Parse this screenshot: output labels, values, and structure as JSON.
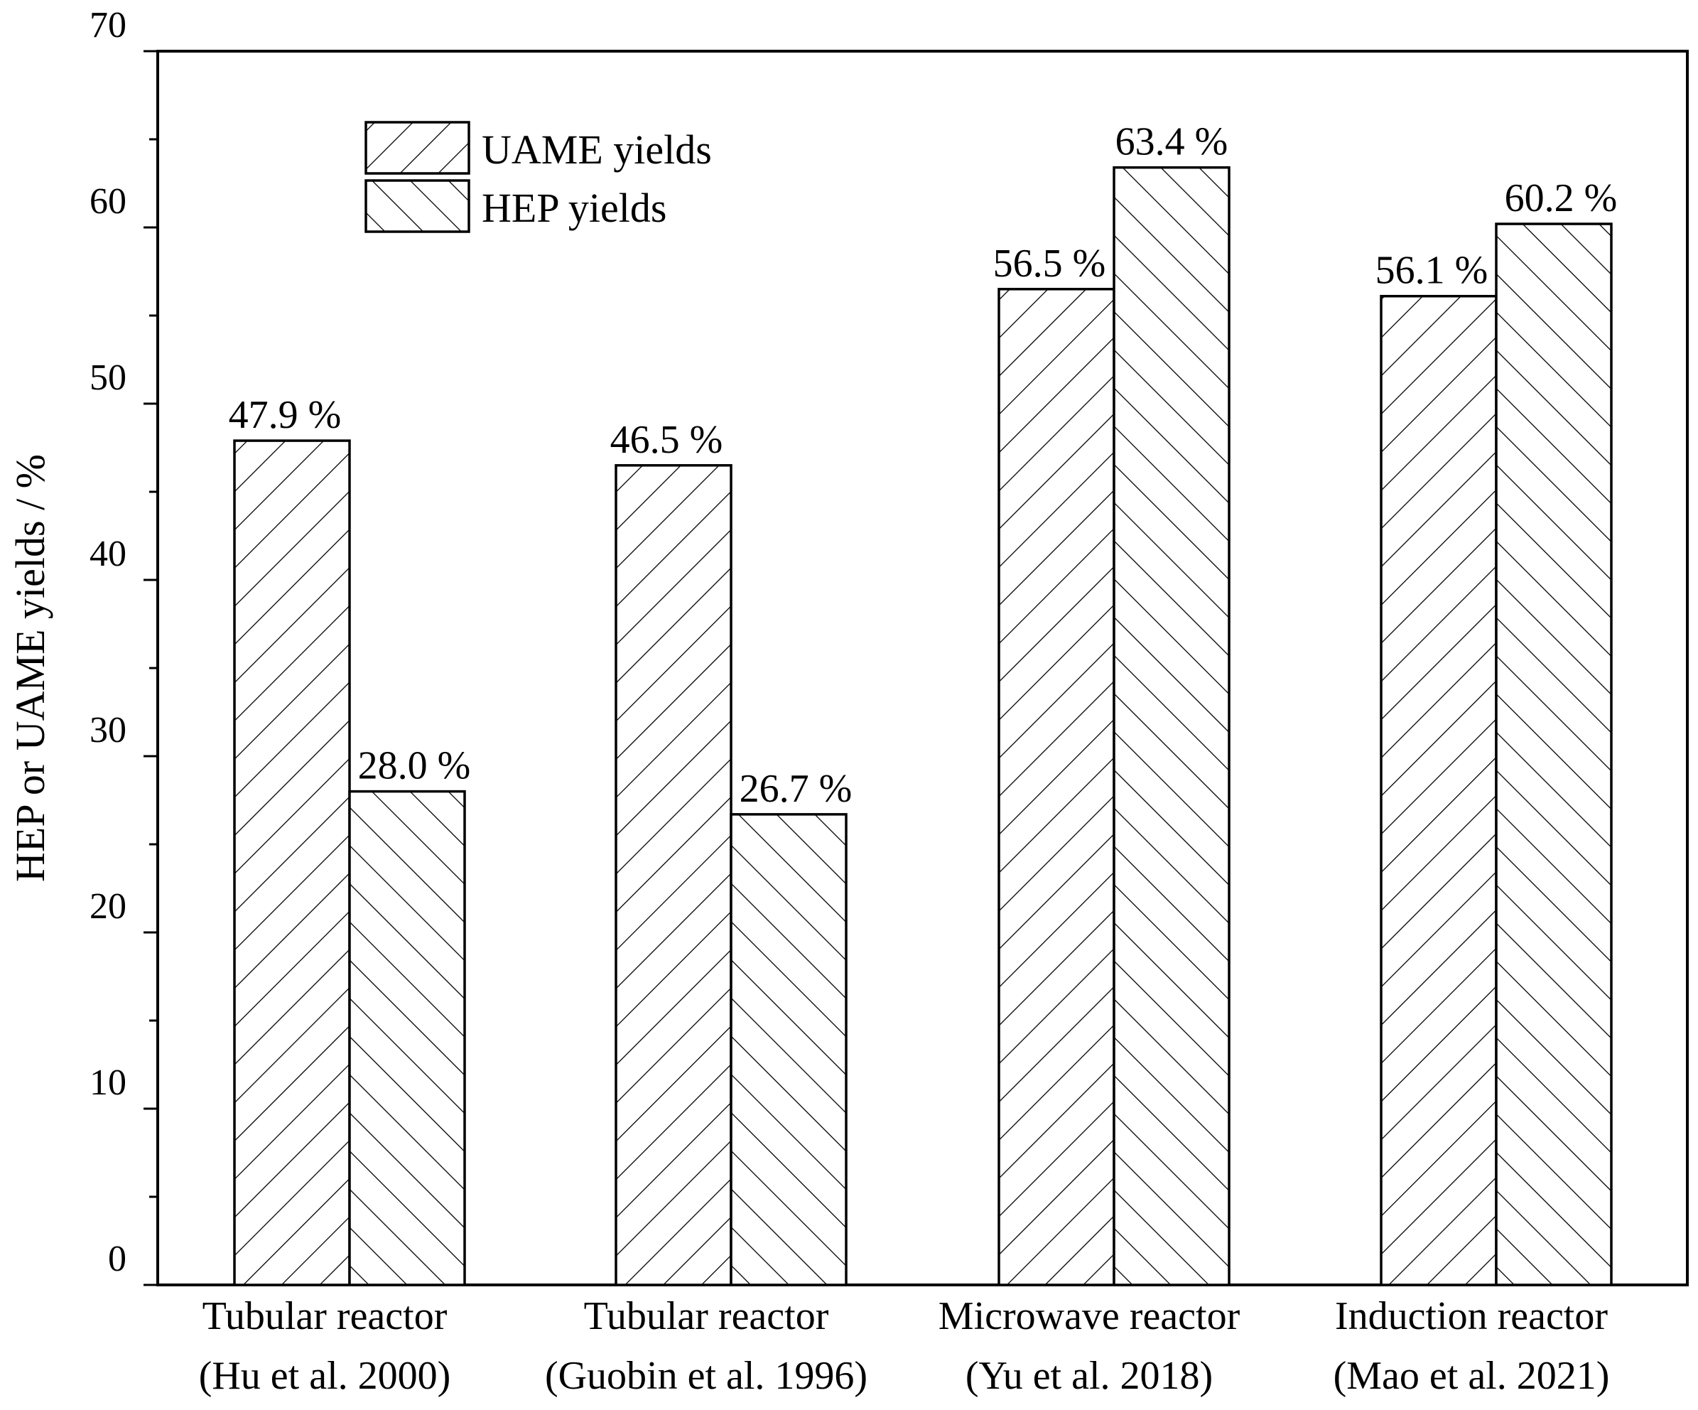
{
  "chart_data": {
    "type": "bar",
    "title": "",
    "xlabel": "",
    "ylabel": "HEP or UAME yields / %",
    "ylim": [
      0,
      70
    ],
    "yticks": [
      "0",
      "10",
      "20",
      "30",
      "40",
      "50",
      "60",
      "70"
    ],
    "categories": [
      [
        "Tubular reactor",
        "(Hu et al. 2000)"
      ],
      [
        "Tubular reactor",
        "(Guobin et al. 1996)"
      ],
      [
        "Microwave reactor",
        "(Yu et al. 2018)"
      ],
      [
        "Induction reactor",
        "(Mao et al. 2021)"
      ]
    ],
    "series": [
      {
        "name": "UAME yields",
        "pattern": "forward-hatch",
        "values": [
          47.9,
          46.5,
          56.5,
          56.1
        ],
        "labels": [
          "47.9 %",
          "46.5 %",
          "56.5 %",
          "56.1 %"
        ]
      },
      {
        "name": "HEP yields",
        "pattern": "back-hatch",
        "values": [
          28.0,
          26.7,
          63.4,
          60.2
        ],
        "labels": [
          "28.0 %",
          "26.7 %",
          "63.4 %",
          "60.2 %"
        ]
      }
    ],
    "legend_position": "top-left",
    "grid": false,
    "colors": {
      "stroke": "#000000",
      "fill": "#ffffff"
    }
  }
}
